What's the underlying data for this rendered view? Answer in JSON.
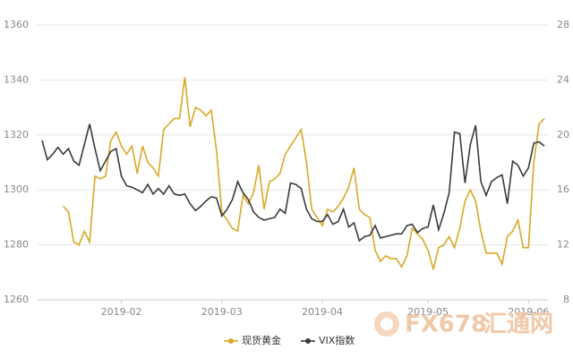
{
  "chart_data": {
    "type": "line",
    "categories": [
      null,
      null,
      null,
      null,
      null,
      null,
      null,
      null,
      null,
      null,
      null,
      null,
      null,
      null,
      null,
      "2019-02",
      null,
      null,
      null,
      null,
      null,
      null,
      null,
      null,
      null,
      null,
      null,
      null,
      null,
      null,
      null,
      null,
      null,
      null,
      "2019-03",
      null,
      null,
      null,
      null,
      null,
      null,
      null,
      null,
      null,
      null,
      null,
      null,
      null,
      null,
      null,
      null,
      null,
      null,
      "2019-04",
      null,
      null,
      null,
      null,
      null,
      null,
      null,
      null,
      null,
      null,
      null,
      null,
      null,
      null,
      null,
      null,
      null,
      null,
      null,
      "2019-05",
      null,
      null,
      null,
      null,
      null,
      null,
      null,
      null,
      null,
      null,
      null,
      null,
      null,
      null,
      null,
      null,
      null,
      null,
      "2019-06",
      null,
      null,
      null
    ],
    "series": [
      {
        "name": "现货黄金",
        "color": "#d8a826",
        "values": [
          null,
          null,
          null,
          null,
          1294,
          1292,
          1281,
          1280,
          1285,
          1281,
          1305,
          1304,
          1305,
          1318,
          1321,
          1316,
          1313,
          1316,
          1306,
          1316,
          1310,
          1308,
          1305,
          1322,
          1324,
          1326,
          1326,
          1341,
          1323,
          1330,
          1329,
          1327,
          1329,
          1314,
          1292,
          1289,
          1286,
          1285,
          1298,
          1295,
          1299,
          1309,
          1293,
          1303,
          1304,
          1306,
          1313,
          1316,
          1319,
          1322,
          1310,
          1293,
          1290,
          1287,
          1293,
          1292,
          1294,
          1297,
          1301,
          1308,
          1293,
          1291,
          1290,
          1278,
          1274,
          1276,
          1275,
          1275,
          1272,
          1276,
          1286,
          1284,
          1282,
          1278,
          1271,
          1279,
          1280,
          1283,
          1279,
          1286,
          1296,
          1300,
          1296,
          1285,
          1277,
          1277,
          1277,
          1273,
          1283,
          1285,
          1289,
          1279,
          1279,
          1310,
          1324,
          1326
        ]
      },
      {
        "name": "VIX指数",
        "color": "#3a3a3a",
        "axis": "y2",
        "values": [
          19.6,
          18.2,
          18.6,
          19.1,
          18.6,
          19.0,
          18.1,
          17.8,
          19.3,
          20.8,
          19.0,
          17.4,
          18.1,
          18.8,
          19.0,
          17.0,
          16.3,
          16.2,
          16.0,
          15.8,
          16.4,
          15.7,
          16.1,
          15.7,
          16.3,
          15.7,
          15.6,
          15.7,
          15.0,
          14.5,
          14.8,
          15.2,
          15.5,
          15.4,
          14.1,
          14.6,
          15.3,
          16.6,
          15.8,
          15.3,
          14.4,
          14.0,
          13.8,
          13.9,
          14.0,
          14.6,
          14.3,
          16.5,
          16.4,
          16.1,
          14.6,
          13.9,
          13.7,
          13.7,
          14.2,
          13.5,
          13.7,
          14.6,
          13.3,
          13.6,
          12.3,
          12.6,
          12.7,
          13.4,
          12.5,
          12.6,
          12.7,
          12.8,
          12.8,
          13.4,
          13.5,
          12.9,
          13.2,
          13.3,
          14.9,
          13.1,
          14.3,
          15.8,
          20.2,
          20.1,
          16.5,
          19.3,
          20.7,
          16.6,
          15.6,
          16.6,
          16.9,
          17.1,
          15.0,
          18.1,
          17.8,
          17.0,
          17.6,
          19.4,
          19.5,
          19.2
        ]
      }
    ],
    "ylim": [
      1260,
      1360
    ],
    "yticks": [
      1260,
      1280,
      1300,
      1320,
      1340,
      1360
    ],
    "y2lim": [
      8,
      28
    ],
    "y2ticks": [
      8,
      12,
      16,
      20,
      24,
      28
    ],
    "grid": true
  },
  "watermark": {
    "brand": "FX678",
    "name": "汇通网"
  }
}
